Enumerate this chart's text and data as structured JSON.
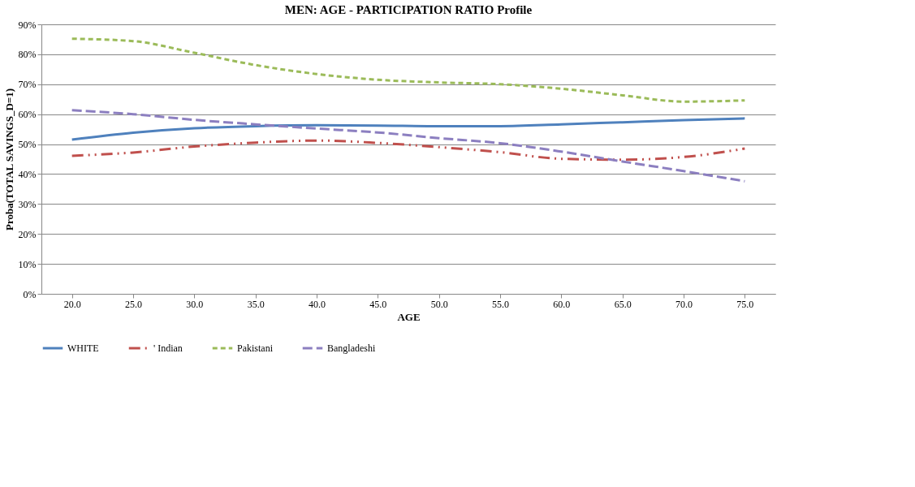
{
  "chart_data": {
    "type": "line",
    "title": "MEN: AGE - PARTICIPATION RATIO Profile",
    "xlabel": "AGE",
    "ylabel": "Proba(TOTAL SAVINGS_D=1)",
    "categories": [
      "20.0",
      "25.0",
      "30.0",
      "35.0",
      "40.0",
      "45.0",
      "50.0",
      "55.0",
      "60.0",
      "65.0",
      "70.0",
      "75.0"
    ],
    "series": [
      {
        "name": "WHITE",
        "color": "#4f81bd",
        "line_style": "solid",
        "values": [
          51.5,
          53.8,
          55.3,
          56,
          56.3,
          56.2,
          56,
          56,
          56.6,
          57.3,
          58,
          58.6
        ]
      },
      {
        "name": "' Indian",
        "color": "#c0504d",
        "line_style": "dashdot",
        "values": [
          46.1,
          47.2,
          49.2,
          50.5,
          51.2,
          50.4,
          49,
          47.3,
          45.1,
          44.8,
          45.7,
          48.5
        ]
      },
      {
        "name": "Pakistani",
        "color": "#9bbb59",
        "line_style": "dashed",
        "values": [
          85.2,
          84.4,
          80.5,
          76.4,
          73.4,
          71.5,
          70.6,
          70,
          68.5,
          66.3,
          64.2,
          64.6
        ]
      },
      {
        "name": "Bangladeshi",
        "color": "#8c7fc0",
        "line_style": "longdash",
        "values": [
          61.3,
          60,
          58.1,
          56.6,
          55.2,
          53.9,
          52,
          50.3,
          47.5,
          44.2,
          41,
          37.6
        ]
      }
    ],
    "ylim": [
      0,
      90
    ],
    "yticks": [
      {
        "value": 0,
        "label": "0%"
      },
      {
        "value": 10,
        "label": "10%"
      },
      {
        "value": 20,
        "label": "20%"
      },
      {
        "value": 30,
        "label": "30%"
      },
      {
        "value": 40,
        "label": "40%"
      },
      {
        "value": 50,
        "label": "50%"
      },
      {
        "value": 60,
        "label": "60%"
      },
      {
        "value": 70,
        "label": "70%"
      },
      {
        "value": 80,
        "label": "80%"
      },
      {
        "value": 90,
        "label": "90%"
      }
    ],
    "grid": "y",
    "legend": "bottom",
    "marker": "none"
  }
}
